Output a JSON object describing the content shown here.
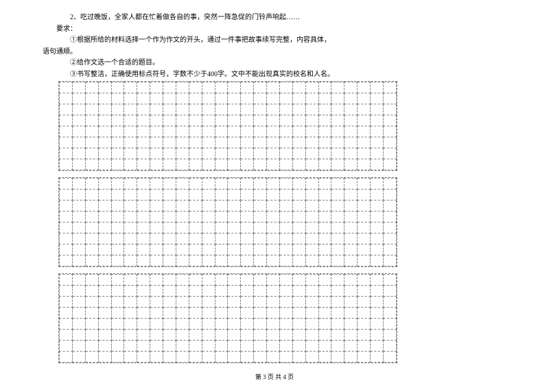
{
  "text": {
    "line1": "2、吃过晚饭，全家人都在忙着做各自的事，突然一阵急促的门铃声响起……",
    "line2": "要求：",
    "line3": "①根据所给的材料选择一个作为作文的开头，通过一件事把故事续写完整，内容具体，",
    "line4": "语句通顺。",
    "line5": "②给作文选一个合适的题目。",
    "line6": "③书写整洁，正确使用标点符号，字数不少于400字。文中不能出现真实的校名和人名。"
  },
  "grid": {
    "columns": 26,
    "blocks": [
      {
        "rows": 8
      },
      {
        "rows": 8
      },
      {
        "rows": 8
      }
    ],
    "cell_border_color": "#808080",
    "background": "#ffffff"
  },
  "footer": {
    "text": "第 3 页 共 4 页"
  },
  "style": {
    "text_color": "#000000",
    "font_size_body": 10,
    "font_size_footer": 9,
    "page_bg": "#ffffff"
  }
}
